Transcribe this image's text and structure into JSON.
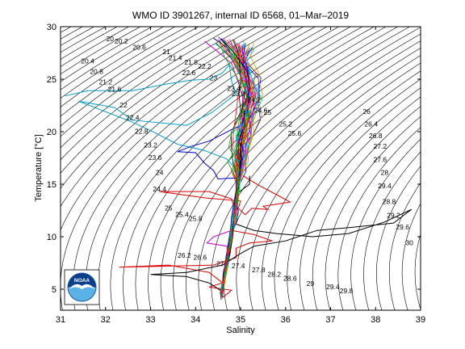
{
  "chart_data": {
    "type": "scatter",
    "title": "WMO ID 3901267, internal ID 6568, 01–Mar–2019",
    "xlabel": "Salinity",
    "ylabel": "Temperature [°C]",
    "xlim": [
      31,
      39
    ],
    "ylim": [
      3,
      30
    ],
    "xticks": [
      "31",
      "32",
      "33",
      "34",
      "35",
      "36",
      "37",
      "38",
      "39"
    ],
    "yticks": [
      "5",
      "10",
      "15",
      "20",
      "25",
      "30"
    ],
    "contour_labels": [
      {
        "text": "20",
        "s": 32.1,
        "t": 28.6
      },
      {
        "text": "20.2",
        "s": 32.35,
        "t": 28.4
      },
      {
        "text": "20.6",
        "s": 32.75,
        "t": 27.8
      },
      {
        "text": "21",
        "s": 33.35,
        "t": 27.4
      },
      {
        "text": "21.4",
        "s": 33.55,
        "t": 26.8
      },
      {
        "text": "21.8",
        "s": 33.9,
        "t": 26.4
      },
      {
        "text": "22.2",
        "s": 34.2,
        "t": 26.0
      },
      {
        "text": "22.6",
        "s": 33.85,
        "t": 25.4
      },
      {
        "text": "23",
        "s": 34.4,
        "t": 24.9
      },
      {
        "text": "20.4",
        "s": 31.6,
        "t": 26.5
      },
      {
        "text": "20.8",
        "s": 31.8,
        "t": 25.5
      },
      {
        "text": "21.2",
        "s": 32.0,
        "t": 24.5
      },
      {
        "text": "21.6",
        "s": 32.2,
        "t": 23.8
      },
      {
        "text": "22",
        "s": 32.4,
        "t": 22.3
      },
      {
        "text": "22.4",
        "s": 32.6,
        "t": 21.1
      },
      {
        "text": "22.8",
        "s": 32.8,
        "t": 19.8
      },
      {
        "text": "23.2",
        "s": 33.0,
        "t": 18.5
      },
      {
        "text": "23.6",
        "s": 33.1,
        "t": 17.3
      },
      {
        "text": "24",
        "s": 33.2,
        "t": 15.9
      },
      {
        "text": "24.4",
        "s": 33.2,
        "t": 14.3
      },
      {
        "text": "25",
        "s": 33.4,
        "t": 12.5
      },
      {
        "text": "25.4",
        "s": 33.7,
        "t": 11.9
      },
      {
        "text": "25.8",
        "s": 34.0,
        "t": 11.5
      },
      {
        "text": "23.4",
        "s": 34.85,
        "t": 23.9
      },
      {
        "text": "23.8",
        "s": 34.95,
        "t": 23.4
      },
      {
        "text": "24.2",
        "s": 35.3,
        "t": 22.8
      },
      {
        "text": "24.6",
        "s": 35.45,
        "t": 21.8
      },
      {
        "text": "25",
        "s": 35.6,
        "t": 21.6
      },
      {
        "text": "25.2",
        "s": 36.0,
        "t": 20.5
      },
      {
        "text": "25.6",
        "s": 36.2,
        "t": 19.6
      },
      {
        "text": "26",
        "s": 37.8,
        "t": 21.7
      },
      {
        "text": "26.4",
        "s": 37.9,
        "t": 20.5
      },
      {
        "text": "26.8",
        "s": 38.0,
        "t": 19.4
      },
      {
        "text": "27.2",
        "s": 38.1,
        "t": 18.4
      },
      {
        "text": "27.6",
        "s": 38.1,
        "t": 17.1
      },
      {
        "text": "28",
        "s": 38.2,
        "t": 15.9
      },
      {
        "text": "29.4",
        "s": 38.2,
        "t": 14.6
      },
      {
        "text": "28.8",
        "s": 38.3,
        "t": 13.1
      },
      {
        "text": "29.2",
        "s": 38.4,
        "t": 11.8
      },
      {
        "text": "29.6",
        "s": 38.6,
        "t": 10.7
      },
      {
        "text": "30",
        "s": 38.75,
        "t": 9.2
      },
      {
        "text": "26.2",
        "s": 33.75,
        "t": 8.0
      },
      {
        "text": "26.6",
        "s": 34.1,
        "t": 7.8
      },
      {
        "text": "27",
        "s": 34.55,
        "t": 7.2
      },
      {
        "text": "27.4",
        "s": 34.95,
        "t": 7.0
      },
      {
        "text": "27.8",
        "s": 35.4,
        "t": 6.6
      },
      {
        "text": "28.2",
        "s": 35.75,
        "t": 6.2
      },
      {
        "text": "28.6",
        "s": 36.1,
        "t": 5.8
      },
      {
        "text": "29",
        "s": 36.55,
        "t": 5.3
      },
      {
        "text": "29.4",
        "s": 37.05,
        "t": 5.0
      },
      {
        "text": "29.8",
        "s": 37.35,
        "t": 4.6
      }
    ],
    "series": [
      {
        "color": "#00a0c8",
        "points": [
          [
            31.1,
            23.4
          ],
          [
            31.6,
            23.9
          ],
          [
            32.6,
            23.9
          ],
          [
            33.3,
            24.5
          ],
          [
            33.9,
            24.9
          ],
          [
            34.3,
            25.0
          ],
          [
            34.6,
            25.6
          ],
          [
            34.75,
            26.4
          ],
          [
            34.8,
            24.8
          ],
          [
            34.9,
            23.6
          ],
          [
            34.35,
            21.8
          ],
          [
            33.8,
            20.6
          ],
          [
            32.6,
            21.1
          ],
          [
            32.2,
            22.3
          ],
          [
            31.8,
            22.6
          ],
          [
            31.4,
            22.9
          ],
          [
            32.6,
            20.9
          ],
          [
            33.0,
            20.1
          ],
          [
            33.6,
            18.8
          ],
          [
            34.2,
            18.2
          ],
          [
            34.7,
            17.4
          ],
          [
            34.9,
            16.4
          ],
          [
            34.95,
            15.2
          ],
          [
            34.95,
            13.6
          ],
          [
            34.92,
            12.5
          ],
          [
            34.88,
            11.3
          ],
          [
            34.82,
            10.1
          ],
          [
            34.78,
            9.2
          ],
          [
            34.73,
            8.2
          ],
          [
            34.68,
            7.1
          ],
          [
            34.63,
            6.1
          ],
          [
            34.58,
            5.3
          ],
          [
            34.56,
            4.3
          ]
        ]
      },
      {
        "color": "#e00000",
        "points": [
          [
            35.05,
            15.8
          ],
          [
            35.4,
            14.9
          ],
          [
            35.8,
            14.0
          ],
          [
            36.1,
            13.3
          ],
          [
            35.8,
            13.1
          ],
          [
            35.5,
            12.9
          ],
          [
            35.6,
            12.6
          ],
          [
            35.25,
            12.7
          ],
          [
            35.1,
            12.1
          ],
          [
            34.95,
            12.7
          ],
          [
            35.0,
            13.4
          ],
          [
            34.2,
            13.7
          ],
          [
            33.2,
            14.3
          ],
          [
            34.3,
            14.3
          ],
          [
            34.8,
            13.6
          ],
          [
            34.9,
            12.2
          ],
          [
            34.8,
            10.6
          ],
          [
            35.3,
            10.2
          ],
          [
            35.7,
            9.6
          ],
          [
            35.2,
            9.4
          ],
          [
            34.9,
            8.9
          ],
          [
            34.9,
            8.0
          ],
          [
            34.4,
            7.3
          ],
          [
            33.4,
            7.2
          ],
          [
            32.3,
            7.1
          ],
          [
            33.4,
            7.3
          ],
          [
            34.3,
            6.6
          ],
          [
            34.6,
            5.6
          ],
          [
            34.3,
            5.2
          ],
          [
            34.8,
            4.9
          ],
          [
            34.6,
            4.2
          ]
        ]
      },
      {
        "color": "#000000",
        "points": [
          [
            35.2,
            15.8
          ],
          [
            35.2,
            15.0
          ],
          [
            34.95,
            14.2
          ],
          [
            34.9,
            13.3
          ],
          [
            34.95,
            12.4
          ],
          [
            34.9,
            11.2
          ],
          [
            35.3,
            10.6
          ],
          [
            35.8,
            10.3
          ],
          [
            36.6,
            10.0
          ],
          [
            37.4,
            10.3
          ],
          [
            38.2,
            11.4
          ],
          [
            38.8,
            12.6
          ],
          [
            38.4,
            11.3
          ],
          [
            37.5,
            10.9
          ],
          [
            36.7,
            10.6
          ],
          [
            36.0,
            9.6
          ],
          [
            35.3,
            9.1
          ],
          [
            35.0,
            8.4
          ],
          [
            34.6,
            7.3
          ],
          [
            33.8,
            6.6
          ],
          [
            33.0,
            6.4
          ],
          [
            33.8,
            6.2
          ],
          [
            34.3,
            5.6
          ],
          [
            34.55,
            4.9
          ],
          [
            34.6,
            4.2
          ]
        ]
      },
      {
        "color": "#0000c8",
        "points": [
          [
            34.4,
            28.9
          ],
          [
            34.7,
            28.0
          ],
          [
            34.9,
            26.6
          ],
          [
            35.05,
            24.8
          ],
          [
            35.15,
            23.2
          ],
          [
            35.1,
            21.6
          ],
          [
            35.0,
            20.6
          ],
          [
            34.8,
            20.2
          ],
          [
            34.3,
            19.1
          ],
          [
            33.9,
            18.6
          ],
          [
            33.6,
            18.1
          ],
          [
            34.0,
            18.0
          ],
          [
            34.2,
            17.0
          ],
          [
            34.4,
            16.3
          ],
          [
            34.5,
            15.5
          ],
          [
            34.9,
            15.6
          ],
          [
            34.9,
            14.4
          ],
          [
            34.85,
            13.2
          ],
          [
            34.8,
            11.8
          ],
          [
            34.78,
            10.8
          ],
          [
            34.74,
            9.7
          ],
          [
            34.7,
            8.6
          ],
          [
            34.68,
            7.6
          ],
          [
            34.62,
            6.7
          ],
          [
            34.6,
            5.7
          ],
          [
            34.56,
            4.6
          ],
          [
            34.57,
            4.0
          ]
        ]
      },
      {
        "color": "#c800c8",
        "points": [
          [
            34.2,
            28.6
          ],
          [
            34.5,
            27.6
          ],
          [
            34.8,
            26.5
          ],
          [
            34.95,
            24.7
          ],
          [
            35.05,
            23.2
          ],
          [
            35.0,
            21.0
          ],
          [
            34.95,
            19.5
          ],
          [
            34.9,
            18.1
          ],
          [
            34.95,
            16.8
          ],
          [
            34.95,
            15.4
          ],
          [
            34.9,
            13.8
          ],
          [
            34.85,
            12.2
          ],
          [
            34.8,
            10.6
          ],
          [
            34.4,
            10.0
          ],
          [
            34.25,
            9.4
          ],
          [
            34.7,
            9.1
          ],
          [
            34.7,
            8.0
          ],
          [
            34.63,
            6.9
          ],
          [
            34.6,
            5.7
          ],
          [
            34.55,
            4.5
          ]
        ]
      },
      {
        "color": "#009900",
        "points": [
          [
            34.6,
            28.6
          ],
          [
            34.85,
            27.2
          ],
          [
            35.1,
            25.4
          ],
          [
            35.2,
            23.8
          ],
          [
            35.15,
            22.1
          ],
          [
            35.05,
            20.1
          ],
          [
            35.0,
            18.6
          ],
          [
            34.98,
            17.2
          ],
          [
            34.96,
            15.6
          ],
          [
            34.92,
            14.1
          ],
          [
            34.88,
            12.6
          ],
          [
            34.83,
            11.1
          ],
          [
            34.79,
            9.8
          ],
          [
            34.74,
            8.6
          ],
          [
            34.69,
            7.4
          ],
          [
            34.64,
            6.3
          ],
          [
            34.6,
            5.2
          ],
          [
            34.58,
            4.3
          ]
        ]
      },
      {
        "color": "#806000",
        "points": [
          [
            34.9,
            28.3
          ],
          [
            35.0,
            26.8
          ],
          [
            35.2,
            25.2
          ],
          [
            35.3,
            23.4
          ],
          [
            35.2,
            21.4
          ],
          [
            35.1,
            19.8
          ],
          [
            35.05,
            18.4
          ],
          [
            35.0,
            16.9
          ],
          [
            34.96,
            15.3
          ],
          [
            34.9,
            13.6
          ],
          [
            34.85,
            11.9
          ],
          [
            34.8,
            10.3
          ],
          [
            34.75,
            8.9
          ],
          [
            34.7,
            7.6
          ],
          [
            34.65,
            6.4
          ],
          [
            34.6,
            5.3
          ],
          [
            34.58,
            4.4
          ]
        ]
      },
      {
        "color": "#007070",
        "points": [
          [
            35.2,
            28.0
          ],
          [
            35.1,
            26.7
          ],
          [
            35.25,
            25.1
          ],
          [
            35.35,
            23.0
          ],
          [
            35.25,
            21.1
          ],
          [
            35.15,
            19.3
          ],
          [
            35.08,
            17.8
          ],
          [
            35.0,
            16.2
          ],
          [
            34.95,
            14.7
          ],
          [
            34.9,
            13.0
          ],
          [
            34.85,
            11.4
          ],
          [
            34.8,
            9.9
          ],
          [
            34.74,
            8.4
          ],
          [
            34.68,
            7.0
          ],
          [
            34.63,
            5.8
          ],
          [
            34.57,
            4.6
          ]
        ]
      }
    ]
  },
  "logo": {
    "text": "NOAA",
    "colors": {
      "ring": "#1a4fa0",
      "sky": "#0a3f8c",
      "sea": "#5ab2e6",
      "bird": "#ffffff"
    }
  }
}
